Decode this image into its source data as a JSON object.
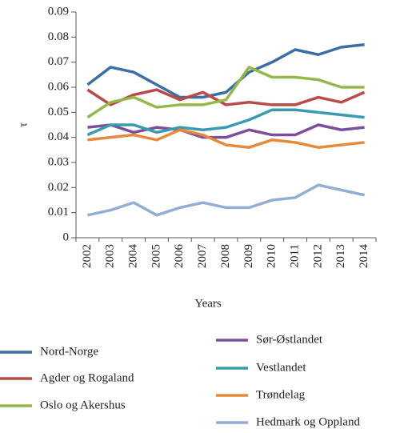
{
  "chart_data": {
    "type": "line",
    "x_label": "Years",
    "y_label": "τ",
    "categories": [
      "2002",
      "2003",
      "2004",
      "2005",
      "2006",
      "2007",
      "2008",
      "2009",
      "2010",
      "2011",
      "2012",
      "2013",
      "2014"
    ],
    "ylim": [
      0,
      0.09
    ],
    "yticks": [
      0,
      0.01,
      0.02,
      0.03,
      0.04,
      0.05,
      0.06,
      0.07,
      0.08,
      0.09
    ],
    "series": [
      {
        "name": "Nord-Norge",
        "color": "#3b6ea5",
        "values": [
          0.061,
          0.068,
          0.066,
          0.061,
          0.056,
          0.056,
          0.058,
          0.066,
          0.07,
          0.075,
          0.073,
          0.076,
          0.077
        ]
      },
      {
        "name": "Agder og Rogaland",
        "color": "#b94a48",
        "values": [
          0.059,
          0.053,
          0.057,
          0.059,
          0.055,
          0.058,
          0.053,
          0.054,
          0.053,
          0.053,
          0.056,
          0.054,
          0.058
        ]
      },
      {
        "name": "Oslo og Akershus",
        "color": "#95b84a",
        "values": [
          0.048,
          0.054,
          0.056,
          0.052,
          0.053,
          0.053,
          0.055,
          0.068,
          0.064,
          0.064,
          0.063,
          0.06,
          0.06
        ]
      },
      {
        "name": "Sør-Østlandet",
        "color": "#7b4f9d",
        "values": [
          0.044,
          0.045,
          0.042,
          0.044,
          0.043,
          0.04,
          0.04,
          0.043,
          0.041,
          0.041,
          0.045,
          0.043,
          0.044
        ]
      },
      {
        "name": "Vestlandet",
        "color": "#3a9bb0",
        "values": [
          0.041,
          0.045,
          0.045,
          0.042,
          0.044,
          0.043,
          0.044,
          0.047,
          0.051,
          0.051,
          0.05,
          0.049,
          0.048
        ]
      },
      {
        "name": "Trøndelag",
        "color": "#e8883a",
        "values": [
          0.039,
          0.04,
          0.041,
          0.039,
          0.043,
          0.041,
          0.037,
          0.036,
          0.039,
          0.038,
          0.036,
          0.037,
          0.038
        ]
      },
      {
        "name": "Hedmark og Oppland",
        "color": "#93aed6",
        "values": [
          0.009,
          0.011,
          0.014,
          0.009,
          0.012,
          0.014,
          0.012,
          0.012,
          0.015,
          0.016,
          0.021,
          0.019,
          0.017
        ]
      }
    ]
  }
}
